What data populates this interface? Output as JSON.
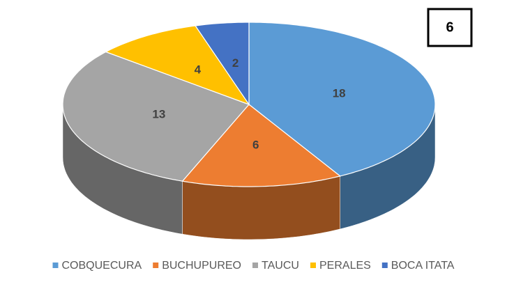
{
  "chart_data": {
    "type": "pie",
    "categories": [
      "COBQUECURA",
      "BUCHUPUREO",
      "TAUCU",
      "PERALES",
      "BOCA ITATA"
    ],
    "values": [
      18,
      6,
      13,
      4,
      2
    ],
    "colors": [
      "#5b9bd5",
      "#ed7d31",
      "#a5a5a5",
      "#ffc000",
      "#4472c4"
    ],
    "annotation": "6",
    "legend": "bottom"
  }
}
